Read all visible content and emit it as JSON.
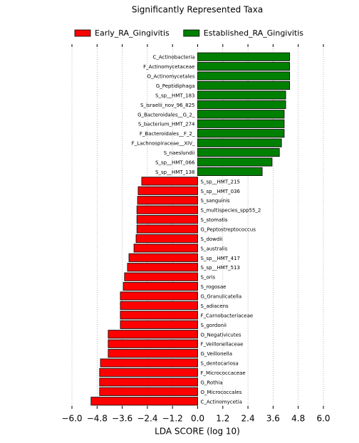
{
  "chart_data": {
    "type": "barh",
    "title": "Significantly Represented Taxa",
    "xlabel": "LDA SCORE (log 10)",
    "categories": [
      "C_Actinobacteria",
      "F_Actinomycetaceae",
      "O_Actinomycetales",
      "G_Peptidiphaga",
      "S_sp__HMT_183",
      "S_israelii_nov_96_825",
      "G_Bacteroidales__G_2_",
      "S_bacterium_HMT_274",
      "F_Bacteroidales__F_2_",
      "F_Lachnospiraceae__XIV_",
      "S_naeslundii",
      "S_sp__HMT_066",
      "S_sp__HMT_138",
      "S_sp__HMT_215",
      "S_sp__HMT_036",
      "S_sanguinis",
      "S_multispecies_spp55_2",
      "S_stomatis",
      "G_Peptostreptococcus",
      "S_dowdii",
      "S_australis",
      "S_sp__HMT_417",
      "S_sp__HMT_513",
      "S_oris",
      "S_rogosae",
      "G_Granulicatella",
      "S_adiacens",
      "F_Carnobacteriaceae",
      "S_gordonii",
      "O_Negativicutes",
      "F_Veillonellaceae",
      "G_Veillonella",
      "S_dentocariosa",
      "F_Micrococcaceae",
      "G_Rothia",
      "O_Micrococcales",
      "C_Actinomycetia"
    ],
    "series": [
      {
        "name": "Early_RA_Gingivitis",
        "color": "#ff0000",
        "values": [
          null,
          null,
          null,
          null,
          null,
          null,
          null,
          null,
          null,
          null,
          null,
          null,
          null,
          -2.67,
          -2.84,
          -2.87,
          -2.9,
          -2.9,
          -2.9,
          -2.94,
          -3.04,
          -3.28,
          -3.35,
          -3.49,
          -3.55,
          -3.69,
          -3.69,
          -3.69,
          -3.69,
          -4.27,
          -4.27,
          -4.27,
          -4.64,
          -4.68,
          -4.68,
          -4.68,
          -5.09
        ]
      },
      {
        "name": "Established_RA_Gingivitis",
        "color": "#008000",
        "values": [
          4.39,
          4.39,
          4.39,
          4.39,
          4.2,
          4.2,
          4.13,
          4.13,
          4.13,
          4.0,
          3.9,
          3.55,
          3.08,
          null,
          null,
          null,
          null,
          null,
          null,
          null,
          null,
          null,
          null,
          null,
          null,
          null,
          null,
          null,
          null,
          null,
          null,
          null,
          null,
          null,
          null,
          null,
          null
        ]
      }
    ],
    "xlim": [
      -6.0,
      6.0
    ],
    "xticks": [
      {
        "value": -6.0,
        "label": "−6.0"
      },
      {
        "value": -4.8,
        "label": "−4.8"
      },
      {
        "value": -3.6,
        "label": "−3.6"
      },
      {
        "value": -2.4,
        "label": "−2.4"
      },
      {
        "value": -1.2,
        "label": "−1.2"
      },
      {
        "value": 0.0,
        "label": "0.0"
      },
      {
        "value": 1.2,
        "label": "1.2"
      },
      {
        "value": 2.4,
        "label": "2.4"
      },
      {
        "value": 3.6,
        "label": "3.6"
      },
      {
        "value": 4.8,
        "label": "4.8"
      },
      {
        "value": 6.0,
        "label": "6.0"
      }
    ],
    "grid": true
  }
}
